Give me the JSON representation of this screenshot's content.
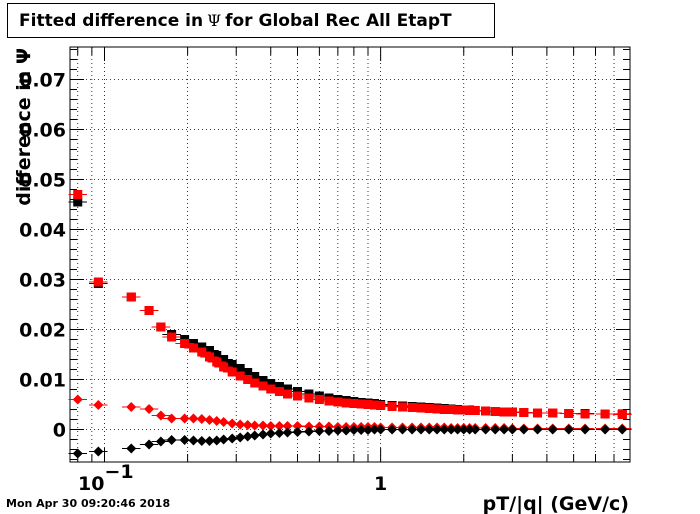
{
  "title": {
    "prefix": "Fitted difference in",
    "symbol": "Ψ",
    "suffix": "for Global Rec All EtapT"
  },
  "timestamp": "Mon Apr 30 09:20:46 2018",
  "chart_data": {
    "type": "scatter",
    "xlabel": "pT/|q| (GeV/c)",
    "ylabel": "difference in Ψ",
    "x_scale": "log",
    "xlim": [
      0.075,
      8.0
    ],
    "ylim": [
      -0.0065,
      0.0765
    ],
    "x_tick_labels": [
      {
        "value": 0.1,
        "label": "10",
        "exp": "−1"
      },
      {
        "value": 1,
        "label": "1",
        "exp": ""
      }
    ],
    "y_ticks": [
      0,
      0.01,
      0.02,
      0.03,
      0.04,
      0.05,
      0.06,
      0.07
    ],
    "y_tick_labels": [
      "0",
      "0.01",
      "0.02",
      "0.03",
      "0.04",
      "0.05",
      "0.06",
      "0.07"
    ],
    "grid": true,
    "series": [
      {
        "color": "#000000",
        "marker": "square",
        "x": [
          0.08,
          0.095,
          0.125,
          0.145,
          0.16,
          0.175,
          0.195,
          0.21,
          0.225,
          0.24,
          0.255,
          0.27,
          0.29,
          0.31,
          0.33,
          0.35,
          0.375,
          0.4,
          0.43,
          0.46,
          0.5,
          0.55,
          0.6,
          0.65,
          0.7,
          0.75,
          0.8,
          0.85,
          0.9,
          0.95,
          1.0,
          1.1,
          1.2,
          1.3,
          1.4,
          1.5,
          1.6,
          1.7,
          1.8,
          1.9,
          2.0,
          2.1,
          2.2,
          2.4,
          2.6,
          2.8,
          3.0,
          3.3,
          3.7,
          4.2,
          4.8,
          5.5,
          6.5,
          7.5
        ],
        "y": [
          0.0455,
          0.0292,
          0.0265,
          0.0238,
          0.0205,
          0.019,
          0.018,
          0.0172,
          0.0165,
          0.0158,
          0.0148,
          0.014,
          0.013,
          0.0122,
          0.0114,
          0.0106,
          0.0098,
          0.0092,
          0.0086,
          0.0081,
          0.0076,
          0.0071,
          0.0067,
          0.0063,
          0.006,
          0.0058,
          0.0056,
          0.0054,
          0.0053,
          0.0052,
          0.005,
          0.0048,
          0.0047,
          0.0046,
          0.0045,
          0.0044,
          0.0043,
          0.0042,
          0.0041,
          0.004,
          0.0039,
          0.0039,
          0.0038,
          0.0037,
          0.0036,
          0.0035,
          0.0035,
          0.0034,
          0.0033,
          0.0033,
          0.0032,
          0.0032,
          0.0031,
          0.0031
        ]
      },
      {
        "color": "#ff0000",
        "marker": "square",
        "x": [
          0.08,
          0.095,
          0.125,
          0.145,
          0.16,
          0.175,
          0.195,
          0.21,
          0.225,
          0.24,
          0.255,
          0.27,
          0.29,
          0.31,
          0.33,
          0.35,
          0.375,
          0.4,
          0.43,
          0.46,
          0.5,
          0.55,
          0.6,
          0.65,
          0.7,
          0.75,
          0.8,
          0.85,
          0.9,
          0.95,
          1.0,
          1.1,
          1.2,
          1.3,
          1.4,
          1.5,
          1.6,
          1.7,
          1.8,
          1.9,
          2.0,
          2.1,
          2.2,
          2.4,
          2.6,
          2.8,
          3.0,
          3.3,
          3.7,
          4.2,
          4.8,
          5.5,
          6.5,
          7.5
        ],
        "y": [
          0.047,
          0.0295,
          0.0265,
          0.0238,
          0.0205,
          0.0185,
          0.0172,
          0.0163,
          0.0155,
          0.0145,
          0.0135,
          0.0125,
          0.0115,
          0.0107,
          0.01,
          0.0093,
          0.0087,
          0.0081,
          0.0076,
          0.0071,
          0.0067,
          0.0063,
          0.006,
          0.0057,
          0.0055,
          0.0053,
          0.0052,
          0.0051,
          0.005,
          0.0049,
          0.0048,
          0.0046,
          0.0045,
          0.0044,
          0.0043,
          0.0042,
          0.0041,
          0.004,
          0.004,
          0.0039,
          0.0039,
          0.0038,
          0.0038,
          0.0037,
          0.0036,
          0.0035,
          0.0035,
          0.0034,
          0.0033,
          0.0033,
          0.0032,
          0.0031,
          0.0031,
          0.003
        ]
      },
      {
        "color": "#ff0000",
        "marker": "diamond",
        "x": [
          0.08,
          0.095,
          0.125,
          0.145,
          0.16,
          0.175,
          0.195,
          0.21,
          0.225,
          0.24,
          0.255,
          0.27,
          0.29,
          0.31,
          0.33,
          0.35,
          0.375,
          0.4,
          0.43,
          0.46,
          0.5,
          0.55,
          0.6,
          0.65,
          0.7,
          0.75,
          0.8,
          0.85,
          0.9,
          0.95,
          1.0,
          1.1,
          1.2,
          1.3,
          1.4,
          1.5,
          1.6,
          1.7,
          1.8,
          1.9,
          2.0,
          2.1,
          2.2,
          2.4,
          2.6,
          2.8,
          3.0,
          3.3,
          3.7,
          4.2,
          4.8,
          5.5,
          6.5,
          7.5
        ],
        "y": [
          0.006,
          0.0049,
          0.0045,
          0.0041,
          0.0028,
          0.0022,
          0.0022,
          0.0022,
          0.0021,
          0.0019,
          0.0017,
          0.0015,
          0.0012,
          0.001,
          0.0009,
          0.0008,
          0.0008,
          0.0007,
          0.0007,
          0.0007,
          0.0007,
          0.0006,
          0.0006,
          0.0006,
          0.0005,
          0.0005,
          0.0005,
          0.0005,
          0.0005,
          0.0005,
          0.0004,
          0.0004,
          0.0004,
          0.0004,
          0.0004,
          0.0004,
          0.0004,
          0.0004,
          0.0003,
          0.0003,
          0.0003,
          0.0003,
          0.0003,
          0.0003,
          0.0003,
          0.0003,
          0.0002,
          0.0002,
          0.0002,
          0.0002,
          0.0002,
          0.0002,
          0.0002,
          0.0002
        ]
      },
      {
        "color": "#000000",
        "marker": "diamond",
        "x": [
          0.08,
          0.095,
          0.125,
          0.145,
          0.16,
          0.175,
          0.195,
          0.21,
          0.225,
          0.24,
          0.255,
          0.27,
          0.29,
          0.31,
          0.33,
          0.35,
          0.375,
          0.4,
          0.43,
          0.46,
          0.5,
          0.55,
          0.6,
          0.65,
          0.7,
          0.75,
          0.8,
          0.85,
          0.9,
          0.95,
          1.0,
          1.1,
          1.2,
          1.3,
          1.4,
          1.5,
          1.6,
          1.7,
          1.8,
          1.9,
          2.0,
          2.1,
          2.2,
          2.4,
          2.6,
          2.8,
          3.0,
          3.3,
          3.7,
          4.2,
          4.8,
          5.5,
          6.5,
          7.5
        ],
        "y": [
          -0.0048,
          -0.0044,
          -0.0038,
          -0.003,
          -0.0024,
          -0.0021,
          -0.0021,
          -0.0022,
          -0.0023,
          -0.0023,
          -0.0022,
          -0.002,
          -0.0018,
          -0.0016,
          -0.0014,
          -0.0012,
          -0.001,
          -0.0008,
          -0.0007,
          -0.0006,
          -0.0005,
          -0.0004,
          -0.0003,
          -0.0003,
          -0.0002,
          -0.0002,
          -0.0001,
          -0.0001,
          -0.0001,
          0.0,
          0.0,
          0.0,
          0.0,
          0.0,
          0.0,
          0.0,
          0.0,
          0.0,
          0.0,
          0.0,
          0.0,
          0.0,
          0.0,
          0.0,
          0.0,
          0.0,
          0.0,
          0.0,
          0.0,
          0.0,
          0.0,
          0.0,
          0.0,
          0.0
        ]
      }
    ]
  }
}
